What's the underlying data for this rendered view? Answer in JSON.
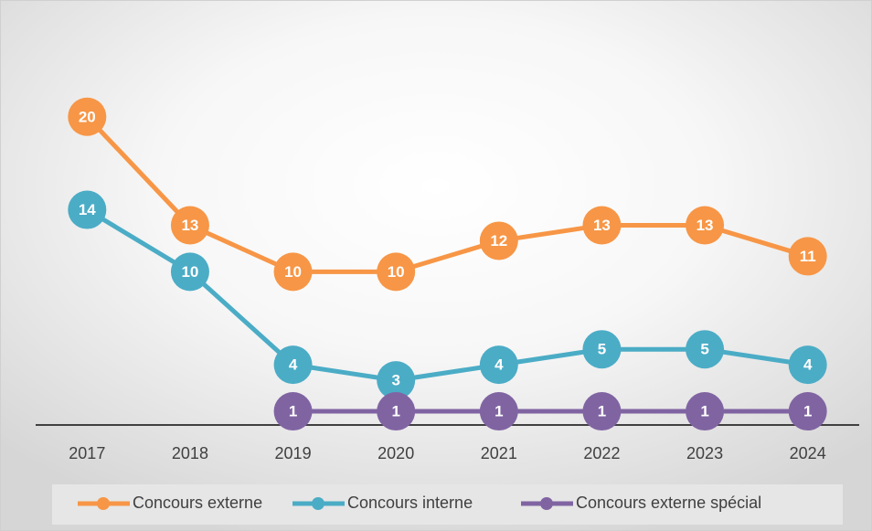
{
  "chart_data": {
    "type": "line",
    "categories": [
      "2017",
      "2018",
      "2019",
      "2020",
      "2021",
      "2022",
      "2023",
      "2024"
    ],
    "series": [
      {
        "name": "Concours externe",
        "color": "#f79646",
        "values": [
          20,
          13,
          10,
          10,
          12,
          13,
          13,
          11
        ]
      },
      {
        "name": "Concours interne",
        "color": "#4bacc6",
        "values": [
          14,
          10,
          4,
          3,
          4,
          5,
          5,
          4
        ]
      },
      {
        "name": "Concours externe spécial",
        "color": "#8064a2",
        "values": [
          null,
          null,
          1,
          1,
          1,
          1,
          1,
          1
        ]
      }
    ],
    "ylim": [
      0,
      26
    ],
    "legend": "bottom"
  }
}
